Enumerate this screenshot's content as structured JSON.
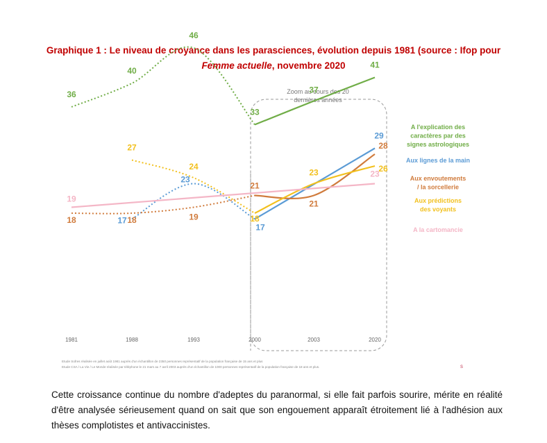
{
  "header": {
    "title_line1": "Graphique 1 : Le niveau de croyance dans les parasciences, évolution depuis 1981 (source : Ifop pour",
    "title_italic": "Femme actuelle",
    "title_rest": ", novembre 2020"
  },
  "chart_data": {
    "type": "line",
    "x": [
      1981,
      1988,
      1993,
      2000,
      2003,
      2020
    ],
    "x_tick_labels": [
      "1981",
      "1988",
      "1993",
      "2000",
      "2003",
      "2020"
    ],
    "zoom_label_line1": "Zoom au cours des 20",
    "zoom_label_line2": "dernières années",
    "series": [
      {
        "name": "A l'explication des caractères par des signes astrologiques",
        "legend_lines": [
          "A l'explication des",
          "caractères par des",
          "signes astrologiques"
        ],
        "color": "#70ad47",
        "values": [
          36,
          40,
          46,
          33,
          37,
          41
        ],
        "value_labels": [
          "36",
          "40",
          "46",
          "33",
          "37",
          "41"
        ]
      },
      {
        "name": "Aux lignes de la main",
        "legend_lines": [
          "Aux lignes de la main"
        ],
        "color": "#5b9bd5",
        "values": [
          null,
          17,
          23,
          17,
          null,
          29
        ],
        "value_labels": [
          "",
          "17",
          "23",
          "17",
          "",
          "29"
        ]
      },
      {
        "name": "Aux envoutements / la sorcellerie",
        "legend_lines": [
          "Aux envoutements",
          "/ la sorcellerie"
        ],
        "color": "#d07b3c",
        "values": [
          18,
          18,
          19,
          21,
          21,
          28
        ],
        "value_labels": [
          "18",
          "18",
          "19",
          "21",
          "21",
          "28"
        ]
      },
      {
        "name": "Aux prédictions des voyants",
        "legend_lines": [
          "Aux prédictions",
          "des voyants"
        ],
        "color": "#f2c01e",
        "values": [
          null,
          27,
          24,
          18,
          23,
          26
        ],
        "value_labels": [
          "",
          "27",
          "24",
          "18",
          "23",
          "26"
        ]
      },
      {
        "name": "A la cartomancie",
        "legend_lines": [
          "A la cartomancie"
        ],
        "color": "#f4b6c6",
        "values": [
          19,
          null,
          null,
          null,
          null,
          23
        ],
        "value_labels": [
          "19",
          "",
          "",
          "",
          "",
          "23"
        ]
      }
    ],
    "source_notes": [
      "Etude Sofres réalisée en juillet août 1981 auprès d'un échantillon de 2350 personnes représentatif de la population française de 15 ans et plus",
      "Etude CSA / La Vie / Le Monde réalisée par téléphone le 21 mars au 7 avril 2003 auprès d'un échantillon de 1000 personnes représentatif de la population française de 18 ans et plus."
    ],
    "corner_mark": "s"
  },
  "body": {
    "paragraph": "Cette croissance continue du nombre d'adeptes du paranormal, si elle fait parfois sourire, mérite en réalité d'être analysée sérieusement quand on sait que son engouement apparaît étroitement lié à l'adhésion aux thèses complotistes et antivaccinistes."
  }
}
